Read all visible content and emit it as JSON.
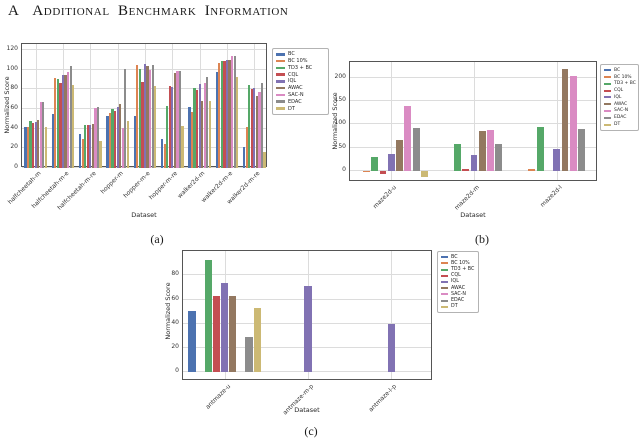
{
  "heading": {
    "letter": "A",
    "title": "Additional Benchmark Information"
  },
  "algorithms": [
    "BC",
    "BC 10%",
    "TD3 + BC",
    "CQL",
    "IQL",
    "AWAC",
    "SAC-N",
    "EDAC",
    "DT"
  ],
  "palette": {
    "BC": "#4C72B0",
    "BC 10%": "#DD8452",
    "TD3 + BC": "#55A868",
    "CQL": "#C44E52",
    "IQL": "#8172B3",
    "AWAC": "#937860",
    "SAC-N": "#DA8BC3",
    "EDAC": "#8C8C8C",
    "DT": "#CCB974"
  },
  "chart_data": [
    {
      "id": "gym-mujoco",
      "type": "bar",
      "caption": "(a)",
      "title": "",
      "xlabel": "Dataset",
      "ylabel": "Normalized Score",
      "yticks": [
        0,
        20,
        40,
        60,
        80,
        100,
        120
      ],
      "ylim": [
        0,
        126
      ],
      "grid": true,
      "legend_position": "right-outside",
      "categories": [
        "halfcheetah-m",
        "halfcheetah-m-e",
        "halfcheetah-m-re",
        "hopper-m",
        "hopper-m-e",
        "hopper-m-re",
        "walker2d-m",
        "walker2d-m-e",
        "walker2d-m-re"
      ],
      "series": [
        {
          "name": "BC",
          "color": "#4C72B0",
          "values": [
            42,
            55,
            35,
            53,
            53,
            29,
            62,
            98,
            21
          ]
        },
        {
          "name": "BC 10%",
          "color": "#DD8452",
          "values": [
            42,
            91,
            29,
            56,
            105,
            24,
            57,
            107,
            42
          ]
        },
        {
          "name": "TD3 + BC",
          "color": "#55A868",
          "values": [
            48,
            90,
            44,
            60,
            101,
            63,
            81,
            109,
            84
          ]
        },
        {
          "name": "CQL",
          "color": "#C44E52",
          "values": [
            46,
            86,
            44,
            58,
            87,
            83,
            79,
            109,
            80
          ]
        },
        {
          "name": "IQL",
          "color": "#8172B3",
          "values": [
            47,
            94,
            44,
            62,
            106,
            82,
            85,
            110,
            81
          ]
        },
        {
          "name": "AWAC",
          "color": "#937860",
          "values": [
            49,
            95,
            45,
            65,
            104,
            97,
            68,
            110,
            73
          ]
        },
        {
          "name": "SAC-N",
          "color": "#DA8BC3",
          "values": [
            67,
            98,
            61,
            41,
            100,
            99,
            86,
            114,
            77
          ]
        },
        {
          "name": "EDAC",
          "color": "#8C8C8C",
          "values": [
            67,
            104,
            62,
            101,
            105,
            99,
            92,
            114,
            86
          ]
        },
        {
          "name": "DT",
          "color": "#CCB974",
          "values": [
            42,
            84,
            27,
            48,
            83,
            43,
            68,
            92,
            16
          ]
        }
      ]
    },
    {
      "id": "maze2d",
      "type": "bar",
      "caption": "(b)",
      "title": "",
      "xlabel": "Dataset",
      "ylabel": "Normalized Score",
      "yticks": [
        0,
        50,
        100,
        150,
        200
      ],
      "ylim": [
        -24,
        234
      ],
      "grid": true,
      "legend_position": "right-outside",
      "categories": [
        "maze2d-u",
        "maze2d-m",
        "maze2d-l"
      ],
      "series": [
        {
          "name": "BC",
          "color": "#4C72B0",
          "values": [
            0,
            0,
            0
          ]
        },
        {
          "name": "BC 10%",
          "color": "#DD8452",
          "values": [
            -2,
            0,
            4
          ]
        },
        {
          "name": "TD3 + BC",
          "color": "#55A868",
          "values": [
            29,
            58,
            95
          ]
        },
        {
          "name": "CQL",
          "color": "#C44E52",
          "values": [
            -6,
            3,
            0
          ]
        },
        {
          "name": "IQL",
          "color": "#8172B3",
          "values": [
            37,
            34,
            47
          ]
        },
        {
          "name": "AWAC",
          "color": "#937860",
          "values": [
            67,
            86,
            218
          ]
        },
        {
          "name": "SAC-N",
          "color": "#DA8BC3",
          "values": [
            139,
            88,
            204
          ]
        },
        {
          "name": "EDAC",
          "color": "#8C8C8C",
          "values": [
            93,
            57,
            90
          ]
        },
        {
          "name": "DT",
          "color": "#CCB974",
          "values": [
            -13,
            0,
            0
          ]
        }
      ]
    },
    {
      "id": "antmaze",
      "type": "bar",
      "caption": "(c)",
      "title": "",
      "xlabel": "Dataset",
      "ylabel": "Normalized Score",
      "yticks": [
        0,
        20,
        40,
        60,
        80
      ],
      "ylim": [
        -7,
        100
      ],
      "grid": true,
      "legend_position": "right-outside",
      "categories": [
        "antmaze-u",
        "antmaze-m-p",
        "antmaze-l-p"
      ],
      "series": [
        {
          "name": "BC",
          "color": "#4C72B0",
          "values": [
            51,
            0,
            0
          ]
        },
        {
          "name": "BC 10%",
          "color": "#DD8452",
          "values": [
            0,
            0,
            0
          ]
        },
        {
          "name": "TD3 + BC",
          "color": "#55A868",
          "values": [
            93,
            0,
            0
          ]
        },
        {
          "name": "CQL",
          "color": "#C44E52",
          "values": [
            63,
            0,
            0
          ]
        },
        {
          "name": "IQL",
          "color": "#8172B3",
          "values": [
            74,
            71,
            40
          ]
        },
        {
          "name": "AWAC",
          "color": "#937860",
          "values": [
            63,
            0,
            0
          ]
        },
        {
          "name": "SAC-N",
          "color": "#DA8BC3",
          "values": [
            0,
            0,
            0
          ]
        },
        {
          "name": "EDAC",
          "color": "#8C8C8C",
          "values": [
            29,
            0,
            0
          ]
        },
        {
          "name": "DT",
          "color": "#CCB974",
          "values": [
            53,
            0,
            0
          ]
        }
      ]
    }
  ]
}
